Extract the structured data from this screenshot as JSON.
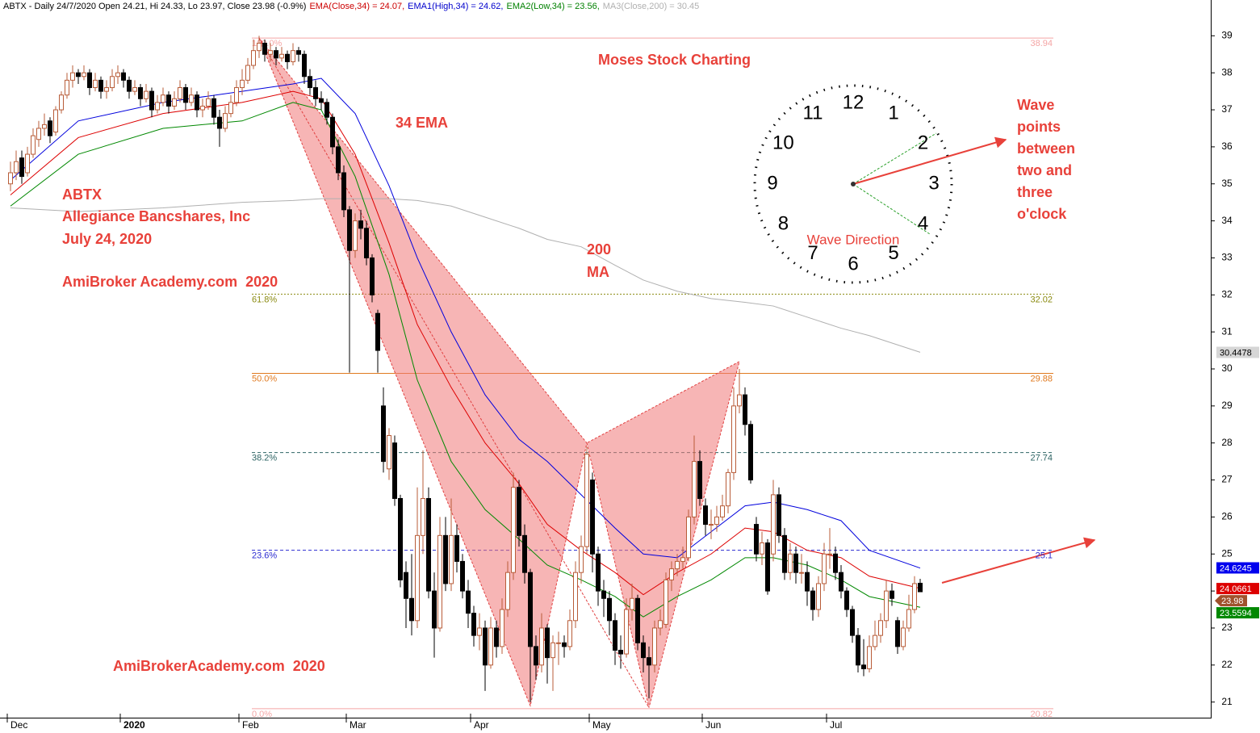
{
  "chart_data": {
    "type": "candlestick",
    "header": [
      {
        "text": "ABTX - Daily 24/7/2020 Open 24.21, Hi 24.33, Lo 23.97, Close 23.98 (-0.9%)",
        "color": "#000000"
      },
      {
        "text": "EMA(Close,34) = 24.07,",
        "color": "#cc0000"
      },
      {
        "text": "EMA1(High,34) = 24.62,",
        "color": "#0000cc"
      },
      {
        "text": "EMA2(Low,34) = 23.56,",
        "color": "#008000"
      },
      {
        "text": "MA3(Close,200) = 30.45",
        "color": "#b0b0b0"
      }
    ],
    "categories": [
      "Dec",
      null,
      null,
      null,
      null,
      null,
      null,
      null,
      null,
      null,
      null,
      null,
      null,
      null,
      null,
      null,
      null,
      null,
      null,
      null,
      "2020",
      null,
      null,
      null,
      null,
      null,
      null,
      null,
      null,
      null,
      null,
      null,
      null,
      null,
      null,
      null,
      null,
      null,
      null,
      null,
      null,
      "Feb",
      null,
      null,
      null,
      null,
      null,
      null,
      null,
      null,
      null,
      null,
      null,
      null,
      null,
      null,
      null,
      null,
      null,
      null,
      "Mar",
      null,
      null,
      null,
      null,
      null,
      null,
      null,
      null,
      null,
      null,
      null,
      null,
      null,
      null,
      null,
      null,
      null,
      null,
      null,
      null,
      null,
      "Apr",
      null,
      null,
      null,
      null,
      null,
      null,
      null,
      null,
      null,
      null,
      null,
      null,
      null,
      null,
      null,
      null,
      null,
      null,
      null,
      null,
      "May",
      null,
      null,
      null,
      null,
      null,
      null,
      null,
      null,
      null,
      null,
      null,
      null,
      null,
      null,
      null,
      null,
      null,
      null,
      null,
      "Jun",
      null,
      null,
      null,
      null,
      null,
      null,
      null,
      null,
      null,
      null,
      null,
      null,
      null,
      null,
      null,
      null,
      null,
      null,
      null,
      null,
      null,
      "Jul",
      null,
      null,
      null,
      null,
      null,
      null,
      null,
      null,
      null,
      null,
      null,
      null,
      null,
      null,
      null,
      null
    ],
    "ohlc": [
      [
        35.0,
        35.6,
        34.8,
        35.3
      ],
      [
        35.3,
        35.9,
        35.1,
        35.6
      ],
      [
        35.7,
        35.9,
        35.0,
        35.2
      ],
      [
        35.3,
        36.0,
        35.2,
        35.8
      ],
      [
        35.8,
        36.5,
        35.7,
        36.3
      ],
      [
        36.2,
        36.7,
        36.0,
        36.5
      ],
      [
        36.5,
        36.9,
        36.3,
        36.6
      ],
      [
        36.7,
        36.8,
        36.1,
        36.3
      ],
      [
        36.4,
        37.1,
        36.3,
        37.0
      ],
      [
        37.0,
        37.5,
        36.9,
        37.4
      ],
      [
        37.4,
        38.0,
        37.3,
        37.8
      ],
      [
        37.8,
        38.2,
        37.6,
        38.0
      ],
      [
        38.0,
        38.1,
        37.7,
        37.9
      ],
      [
        37.9,
        38.2,
        37.8,
        38.0
      ],
      [
        38.0,
        38.1,
        37.4,
        37.6
      ],
      [
        37.6,
        38.0,
        37.5,
        37.8
      ],
      [
        37.8,
        37.9,
        37.3,
        37.5
      ],
      [
        37.5,
        37.8,
        37.3,
        37.6
      ],
      [
        37.6,
        38.1,
        37.5,
        37.9
      ],
      [
        37.9,
        38.2,
        37.7,
        38.0
      ],
      [
        38.0,
        38.1,
        37.6,
        37.8
      ],
      [
        37.8,
        37.9,
        37.3,
        37.5
      ],
      [
        37.5,
        37.8,
        37.4,
        37.6
      ],
      [
        37.6,
        37.7,
        37.1,
        37.3
      ],
      [
        37.3,
        37.7,
        37.2,
        37.5
      ],
      [
        37.5,
        37.6,
        36.8,
        37.0
      ],
      [
        37.0,
        37.4,
        36.9,
        37.2
      ],
      [
        37.2,
        37.6,
        37.1,
        37.4
      ],
      [
        37.4,
        37.5,
        36.9,
        37.1
      ],
      [
        37.1,
        37.5,
        37.0,
        37.3
      ],
      [
        37.3,
        37.8,
        37.2,
        37.6
      ],
      [
        37.6,
        37.7,
        37.0,
        37.2
      ],
      [
        37.2,
        37.6,
        37.1,
        37.4
      ],
      [
        37.4,
        37.5,
        36.8,
        37.0
      ],
      [
        37.0,
        37.3,
        36.8,
        37.1
      ],
      [
        37.1,
        37.5,
        37.0,
        37.3
      ],
      [
        37.3,
        37.4,
        36.6,
        36.8
      ],
      [
        36.8,
        37.0,
        36.0,
        36.5
      ],
      [
        36.5,
        37.1,
        36.4,
        36.9
      ],
      [
        36.9,
        37.4,
        36.8,
        37.2
      ],
      [
        37.2,
        37.8,
        37.1,
        37.6
      ],
      [
        37.6,
        38.1,
        37.4,
        37.8
      ],
      [
        37.8,
        38.4,
        37.7,
        38.2
      ],
      [
        38.2,
        38.9,
        38.1,
        38.6
      ],
      [
        38.6,
        39.0,
        38.4,
        38.8
      ],
      [
        38.8,
        38.9,
        38.3,
        38.5
      ],
      [
        38.5,
        38.8,
        38.3,
        38.6
      ],
      [
        38.6,
        38.7,
        38.2,
        38.4
      ],
      [
        38.4,
        38.7,
        38.3,
        38.5
      ],
      [
        38.5,
        38.6,
        38.1,
        38.3
      ],
      [
        38.3,
        38.8,
        38.2,
        38.6
      ],
      [
        38.6,
        38.7,
        38.3,
        38.5
      ],
      [
        38.5,
        38.6,
        37.7,
        37.9
      ],
      [
        37.9,
        38.1,
        37.4,
        37.6
      ],
      [
        37.6,
        37.8,
        37.1,
        37.3
      ],
      [
        37.3,
        37.5,
        37.0,
        37.2
      ],
      [
        37.2,
        37.3,
        36.6,
        36.8
      ],
      [
        36.8,
        36.9,
        35.8,
        36.0
      ],
      [
        36.0,
        36.2,
        35.1,
        35.3
      ],
      [
        35.3,
        35.5,
        34.1,
        34.3
      ],
      [
        34.3,
        34.4,
        29.9,
        33.2
      ],
      [
        33.2,
        34.2,
        33.0,
        34.0
      ],
      [
        34.0,
        34.3,
        33.5,
        33.8
      ],
      [
        33.8,
        34.0,
        32.8,
        33.0
      ],
      [
        33.0,
        33.1,
        31.8,
        32.0
      ],
      [
        31.5,
        31.6,
        29.9,
        30.5
      ],
      [
        29.0,
        29.5,
        27.2,
        27.5
      ],
      [
        27.3,
        28.4,
        27.0,
        28.2
      ],
      [
        28.0,
        28.2,
        26.3,
        26.5
      ],
      [
        26.5,
        26.6,
        24.1,
        24.3
      ],
      [
        24.5,
        24.8,
        23.0,
        23.8
      ],
      [
        23.8,
        25.0,
        22.8,
        23.2
      ],
      [
        23.2,
        26.8,
        23.0,
        25.5
      ],
      [
        25.5,
        27.8,
        25.0,
        26.5
      ],
      [
        26.5,
        26.8,
        23.8,
        24.0
      ],
      [
        24.0,
        24.5,
        22.2,
        23.0
      ],
      [
        23.0,
        26.0,
        22.9,
        25.5
      ],
      [
        25.5,
        26.0,
        24.0,
        24.2
      ],
      [
        24.2,
        26.5,
        24.0,
        25.5
      ],
      [
        25.5,
        25.8,
        24.5,
        24.8
      ],
      [
        24.8,
        25.0,
        23.8,
        24.0
      ],
      [
        24.0,
        24.3,
        23.0,
        23.4
      ],
      [
        23.4,
        23.6,
        22.5,
        22.8
      ],
      [
        22.8,
        23.4,
        22.4,
        23.0
      ],
      [
        23.0,
        23.2,
        21.3,
        22.0
      ],
      [
        22.0,
        23.3,
        21.9,
        23.0
      ],
      [
        23.0,
        23.2,
        22.2,
        22.5
      ],
      [
        22.5,
        23.8,
        22.3,
        23.5
      ],
      [
        23.5,
        24.8,
        23.3,
        24.5
      ],
      [
        24.5,
        27.2,
        24.3,
        26.8
      ],
      [
        26.8,
        27.0,
        25.2,
        25.5
      ],
      [
        25.5,
        25.8,
        24.2,
        24.5
      ],
      [
        24.5,
        24.6,
        21.0,
        22.5
      ],
      [
        22.5,
        22.8,
        21.6,
        22.0
      ],
      [
        22.0,
        23.4,
        21.8,
        23.0
      ],
      [
        23.0,
        23.1,
        21.5,
        22.2
      ],
      [
        22.2,
        22.8,
        21.3,
        22.6
      ],
      [
        22.6,
        22.9,
        22.0,
        22.6
      ],
      [
        22.6,
        22.8,
        22.2,
        22.5
      ],
      [
        22.5,
        23.5,
        22.4,
        23.2
      ],
      [
        23.2,
        24.8,
        23.0,
        24.5
      ],
      [
        24.5,
        25.5,
        24.2,
        25.2
      ],
      [
        25.2,
        27.9,
        25.0,
        27.7
      ],
      [
        27.0,
        27.2,
        24.5,
        25.0
      ],
      [
        25.0,
        25.2,
        23.6,
        24.0
      ],
      [
        24.0,
        24.3,
        23.3,
        23.8
      ],
      [
        23.8,
        24.0,
        22.8,
        23.2
      ],
      [
        23.2,
        23.4,
        22.0,
        22.4
      ],
      [
        22.4,
        22.8,
        21.9,
        22.3
      ],
      [
        22.3,
        23.8,
        22.2,
        23.5
      ],
      [
        23.5,
        24.2,
        23.2,
        23.8
      ],
      [
        23.8,
        23.9,
        22.4,
        22.6
      ],
      [
        22.6,
        22.8,
        21.8,
        22.2
      ],
      [
        22.2,
        22.5,
        21.1,
        22.0
      ],
      [
        22.0,
        23.2,
        21.8,
        23.0
      ],
      [
        23.0,
        23.5,
        22.8,
        23.2
      ],
      [
        23.1,
        24.5,
        23.0,
        24.3
      ],
      [
        24.3,
        24.8,
        24.0,
        24.6
      ],
      [
        24.6,
        25.0,
        24.4,
        24.8
      ],
      [
        24.8,
        25.2,
        24.6,
        24.9
      ],
      [
        24.9,
        26.2,
        24.8,
        26.0
      ],
      [
        26.0,
        28.2,
        25.8,
        27.5
      ],
      [
        27.5,
        27.8,
        26.3,
        26.5
      ],
      [
        26.3,
        26.5,
        25.5,
        25.8
      ],
      [
        25.8,
        26.2,
        25.4,
        25.8
      ],
      [
        25.8,
        26.3,
        25.6,
        26.0
      ],
      [
        26.0,
        26.6,
        25.9,
        26.3
      ],
      [
        26.3,
        27.3,
        26.1,
        27.2
      ],
      [
        27.2,
        29.5,
        27.0,
        29.0
      ],
      [
        29.0,
        30.0,
        28.8,
        29.3
      ],
      [
        29.3,
        29.5,
        28.2,
        28.5
      ],
      [
        28.5,
        28.6,
        26.9,
        27.0
      ],
      [
        25.8,
        26.0,
        24.8,
        25.0
      ],
      [
        25.0,
        25.6,
        24.7,
        25.3
      ],
      [
        25.3,
        25.4,
        23.9,
        24.0
      ],
      [
        25.0,
        27.0,
        24.8,
        26.6
      ],
      [
        26.6,
        26.8,
        25.3,
        25.5
      ],
      [
        25.5,
        25.7,
        24.3,
        24.5
      ],
      [
        24.5,
        25.3,
        24.3,
        25.0
      ],
      [
        25.0,
        25.2,
        24.2,
        24.5
      ],
      [
        24.5,
        25.0,
        24.2,
        24.5
      ],
      [
        24.5,
        24.8,
        23.6,
        24.0
      ],
      [
        24.0,
        24.1,
        23.2,
        23.5
      ],
      [
        23.5,
        24.4,
        23.3,
        24.2
      ],
      [
        24.2,
        25.3,
        24.0,
        25.0
      ],
      [
        25.0,
        25.7,
        24.6,
        25.0
      ],
      [
        25.0,
        25.2,
        24.3,
        24.5
      ],
      [
        24.5,
        24.7,
        23.8,
        24.0
      ],
      [
        24.0,
        24.1,
        23.3,
        23.5
      ],
      [
        23.5,
        23.6,
        22.6,
        22.8
      ],
      [
        22.8,
        23.0,
        21.8,
        22.0
      ],
      [
        22.0,
        22.7,
        21.7,
        21.9
      ],
      [
        21.9,
        22.8,
        21.8,
        22.5
      ],
      [
        22.5,
        23.2,
        22.4,
        22.8
      ],
      [
        22.8,
        23.4,
        22.6,
        23.2
      ],
      [
        23.2,
        24.3,
        23.0,
        24.0
      ],
      [
        24.0,
        24.2,
        23.6,
        23.8
      ],
      [
        23.2,
        23.3,
        22.3,
        22.5
      ],
      [
        22.5,
        23.2,
        22.4,
        23.0
      ],
      [
        23.0,
        23.9,
        22.9,
        23.5
      ],
      [
        23.5,
        24.4,
        23.4,
        24.2
      ],
      [
        24.21,
        24.33,
        23.97,
        23.98
      ]
    ],
    "up_color": "#b85c38",
    "down_color": "#000000",
    "indicators": {
      "x": [
        0,
        12,
        27,
        41,
        50,
        55,
        61,
        67,
        72,
        78,
        84,
        90,
        95,
        101,
        107,
        112,
        118,
        124,
        130,
        135,
        141,
        147,
        152,
        161
      ],
      "series": [
        {
          "color": "#b0b0b0",
          "values": [
            34.35,
            34.25,
            34.35,
            34.5,
            34.55,
            34.6,
            34.6,
            34.6,
            34.55,
            34.4,
            34.1,
            33.8,
            33.5,
            33.3,
            32.8,
            32.4,
            32.1,
            31.9,
            31.8,
            31.7,
            31.4,
            31.1,
            30.9,
            30.45
          ]
        },
        {
          "color": "#0000dd",
          "values": [
            35.1,
            36.7,
            37.2,
            37.5,
            37.7,
            37.85,
            36.9,
            34.95,
            33.0,
            31.0,
            29.3,
            28.1,
            27.5,
            26.6,
            25.7,
            25.0,
            24.9,
            25.6,
            26.3,
            26.4,
            26.2,
            25.9,
            25.1,
            24.62
          ]
        },
        {
          "color": "#dd0000",
          "values": [
            34.7,
            36.25,
            36.9,
            37.2,
            37.5,
            37.3,
            35.8,
            33.4,
            31.2,
            29.5,
            28.0,
            26.9,
            25.8,
            25.1,
            24.5,
            23.9,
            24.5,
            25.0,
            25.7,
            25.6,
            25.1,
            24.9,
            24.4,
            24.07
          ]
        },
        {
          "color": "#008800",
          "values": [
            34.4,
            35.8,
            36.5,
            36.7,
            37.2,
            37.0,
            35.2,
            32.55,
            29.7,
            27.5,
            26.2,
            25.4,
            24.7,
            24.3,
            23.85,
            23.3,
            23.85,
            24.3,
            24.9,
            24.9,
            24.7,
            24.3,
            23.85,
            23.56
          ]
        }
      ]
    },
    "fib_levels": [
      {
        "pct": "100.0%",
        "value": 38.94,
        "color": "#f4a5a5",
        "dash": "solid"
      },
      {
        "pct": "61.8%",
        "value": 32.02,
        "color": "#8a8a10",
        "dash": "dotted"
      },
      {
        "pct": "50.0%",
        "value": 29.88,
        "color": "#e07a20",
        "dash": "solid"
      },
      {
        "pct": "38.2%",
        "value": 27.74,
        "color": "#2e6464",
        "dash": "dashed"
      },
      {
        "pct": "23.6%",
        "value": 25.1,
        "color": "#2a2ad0",
        "dash": "dashed"
      },
      {
        "pct": "0.0%",
        "value": 20.82,
        "color": "#f4a5a5",
        "dash": "solid"
      }
    ],
    "pattern": {
      "color": "#f07878",
      "x": [
        44,
        92,
        102,
        113,
        129
      ],
      "y": [
        38.94,
        20.9,
        28.0,
        20.85,
        30.2
      ]
    },
    "ylim": [
      20.6,
      39.4
    ],
    "yticks": [
      21,
      22,
      23,
      24,
      25,
      26,
      27,
      28,
      29,
      30,
      31,
      32,
      33,
      34,
      35,
      36,
      37,
      38,
      39
    ],
    "price_tags": [
      {
        "value": 30.4478,
        "color": "#d6d6d6",
        "text_color": "#000000"
      },
      {
        "value": 24.6245,
        "color": "#0000ee",
        "text_color": "#ffffff"
      },
      {
        "value": 24.0661,
        "color": "#dd0000",
        "text_color": "#ffffff"
      },
      {
        "value": 23.98,
        "color": "#a0522d",
        "text_color": "#ffffff"
      },
      {
        "value": 23.5594,
        "color": "#008800",
        "text_color": "#ffffff"
      }
    ],
    "annotations": [
      "Moses Stock Charting",
      "34 EMA",
      "ABTX",
      "Allegiance Bancshares, Inc",
      "July 24, 2020",
      "AmiBroker Academy.com  2020",
      "200",
      "MA",
      "AmiBrokerAcademy.com  2020",
      "Wave",
      "points",
      "between",
      "two and",
      "three",
      "o'clock"
    ]
  },
  "clock": {
    "numbers": [
      "12",
      "1",
      "2",
      "3",
      "4",
      "5",
      "6",
      "7",
      "8",
      "9",
      "10",
      "11"
    ],
    "label": "Wave Direction"
  }
}
